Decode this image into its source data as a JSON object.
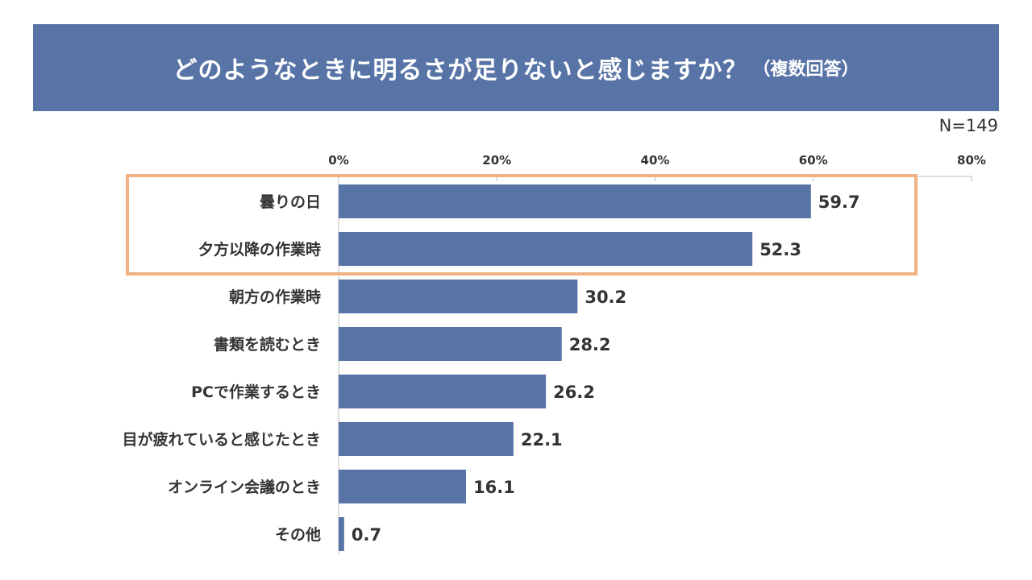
{
  "title": "どのようなときに明るさが足りないと感じますか？",
  "subtitle": "（複数回答）",
  "sample_size": "N=149",
  "colors": {
    "banner": "#5874a7",
    "bar": "#5874a7",
    "highlight_border": "#f0b183",
    "axis": "#bfbfbf",
    "text": "#333333"
  },
  "chart_data": {
    "type": "bar",
    "orientation": "horizontal",
    "categories": [
      "曇りの日",
      "夕方以降の作業時",
      "朝方の作業時",
      "書類を読むとき",
      "PCで作業するとき",
      "目が疲れていると感じたとき",
      "オンライン会議のとき",
      "その他"
    ],
    "values": [
      59.7,
      52.3,
      30.2,
      28.2,
      26.2,
      22.1,
      16.1,
      0.7
    ],
    "data_labels": [
      "59.7",
      "52.3",
      "30.2",
      "28.2",
      "26.2",
      "22.1",
      "16.1",
      "0.7"
    ],
    "xlim": [
      0,
      80
    ],
    "ticks": [
      0,
      20,
      40,
      60,
      80
    ],
    "tick_labels": [
      "0%",
      "20%",
      "40%",
      "60%",
      "80%"
    ],
    "axis_position": "top",
    "grid": false,
    "legend": "none",
    "highlighted_categories": [
      "曇りの日",
      "夕方以降の作業時"
    ]
  }
}
